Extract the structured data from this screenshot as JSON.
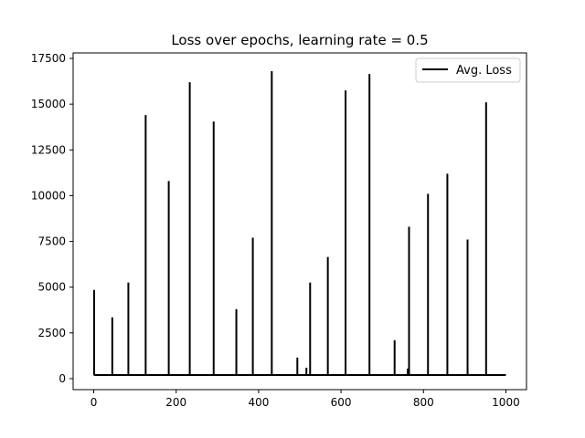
{
  "chart_data": {
    "type": "line",
    "title": "Loss over epochs, learning rate = 0.5",
    "xlabel": "",
    "ylabel": "",
    "xlim": [
      -50,
      1050
    ],
    "ylim": [
      -600,
      17800
    ],
    "xticks": [
      0,
      200,
      400,
      600,
      800,
      1000
    ],
    "yticks": [
      0,
      2500,
      5000,
      7500,
      10000,
      12500,
      15000,
      17500
    ],
    "grid": false,
    "legend": {
      "placement": "top-right"
    },
    "series": [
      {
        "name": "Avg. Loss",
        "color": "#000000",
        "baseline": 200,
        "x_range": [
          0,
          1000
        ],
        "spikes": [
          {
            "x": 1,
            "y": 4850
          },
          {
            "x": 45,
            "y": 3350
          },
          {
            "x": 84,
            "y": 5250
          },
          {
            "x": 126,
            "y": 14400
          },
          {
            "x": 182,
            "y": 10800
          },
          {
            "x": 233,
            "y": 16200
          },
          {
            "x": 291,
            "y": 14050
          },
          {
            "x": 346,
            "y": 3800
          },
          {
            "x": 386,
            "y": 7700
          },
          {
            "x": 432,
            "y": 16800
          },
          {
            "x": 494,
            "y": 1150
          },
          {
            "x": 516,
            "y": 600
          },
          {
            "x": 525,
            "y": 5250
          },
          {
            "x": 568,
            "y": 6650
          },
          {
            "x": 611,
            "y": 15750
          },
          {
            "x": 669,
            "y": 16650
          },
          {
            "x": 730,
            "y": 2100
          },
          {
            "x": 762,
            "y": 550
          },
          {
            "x": 765,
            "y": 8300
          },
          {
            "x": 811,
            "y": 10100
          },
          {
            "x": 858,
            "y": 11200
          },
          {
            "x": 907,
            "y": 7600
          },
          {
            "x": 952,
            "y": 15100
          }
        ]
      }
    ]
  }
}
